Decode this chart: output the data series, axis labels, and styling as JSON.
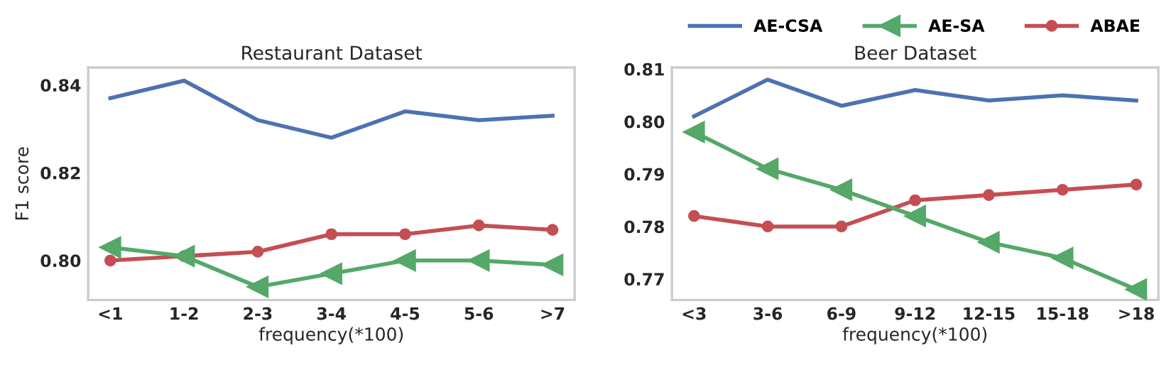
{
  "chart_data": [
    {
      "type": "line",
      "title": "Restaurant Dataset",
      "xlabel": "frequency(*100)",
      "ylabel": "F1 score",
      "categories": [
        "<1",
        "1-2",
        "2-3",
        "3-4",
        "4-5",
        "5-6",
        ">7"
      ],
      "series": [
        {
          "color": "#4c72b0",
          "marker": "none",
          "values": [
            0.837,
            0.841,
            0.832,
            0.828,
            0.834,
            0.832,
            0.833
          ]
        },
        {
          "color": "#55a868",
          "marker": "triangle",
          "values": [
            0.803,
            0.801,
            0.794,
            0.797,
            0.8,
            0.8,
            0.799
          ]
        },
        {
          "color": "#c44e52",
          "marker": "circle",
          "values": [
            0.8,
            0.801,
            0.802,
            0.806,
            0.806,
            0.808,
            0.807
          ]
        }
      ],
      "ylim": [
        0.791,
        0.844
      ],
      "yticks": [
        {
          "value": 0.8,
          "label": "0.80"
        },
        {
          "value": 0.82,
          "label": "0.82"
        },
        {
          "value": 0.84,
          "label": "0.84"
        }
      ],
      "grid": false,
      "legend": false
    },
    {
      "type": "line",
      "title": "Beer Dataset",
      "xlabel": "frequency(*100)",
      "categories": [
        "<3",
        "3-6",
        "6-9",
        "9-12",
        "12-15",
        "15-18",
        ">18"
      ],
      "series": [
        {
          "name": "AE-CSA",
          "color": "#4c72b0",
          "marker": "none",
          "values": [
            0.801,
            0.808,
            0.803,
            0.806,
            0.804,
            0.805,
            0.804
          ]
        },
        {
          "name": "AE-SA",
          "color": "#55a868",
          "marker": "triangle",
          "values": [
            0.798,
            0.791,
            0.787,
            0.782,
            0.777,
            0.774,
            0.768
          ]
        },
        {
          "name": "ABAE",
          "color": "#c44e52",
          "marker": "circle",
          "values": [
            0.782,
            0.78,
            0.78,
            0.785,
            0.786,
            0.787,
            0.788
          ]
        }
      ],
      "ylim": [
        0.766,
        0.8103
      ],
      "yticks": [
        {
          "value": 0.77,
          "label": "0.77"
        },
        {
          "value": 0.78,
          "label": "0.78"
        },
        {
          "value": 0.79,
          "label": "0.79"
        },
        {
          "value": 0.8,
          "label": "0.80"
        },
        {
          "value": 0.81,
          "label": "0.81"
        }
      ],
      "grid": false,
      "legend": "top"
    }
  ]
}
